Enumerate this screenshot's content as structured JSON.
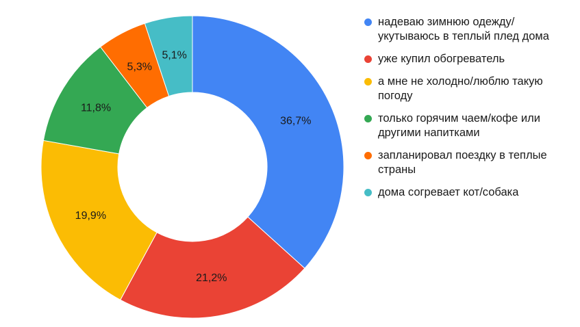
{
  "chart_data": {
    "type": "pie",
    "title": "",
    "donut": true,
    "legend_position": "right",
    "unit": "%",
    "categories": [
      "надеваю зимнюю одежду/укутываюсь в теплый плед дома",
      "уже купил обогреватель",
      "а мне не холодно/люблю такую погоду",
      "только горячим чаем/кофе или другими напитками",
      "запланировал поездку в теплые страны",
      "дома согревает кот/собака"
    ],
    "values": [
      36.7,
      21.2,
      19.9,
      11.8,
      5.3,
      5.1
    ],
    "labels": [
      "36,7%",
      "21,2%",
      "19,9%",
      "11,8%",
      "5,3%",
      "5,1%"
    ],
    "colors": [
      "#4285F4",
      "#EA4335",
      "#FBBC04",
      "#34A853",
      "#FF6D01",
      "#46BDC6"
    ]
  }
}
